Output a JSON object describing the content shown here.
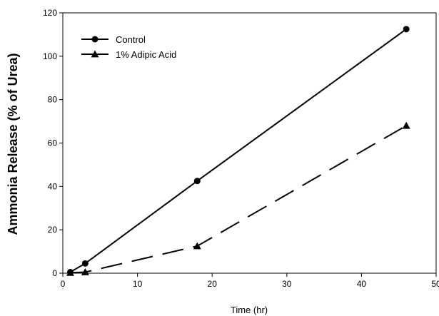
{
  "chart_data": {
    "type": "line",
    "title": "",
    "xlabel": "Time (hr)",
    "ylabel": "Ammonia Release (% of Urea)",
    "xlim": [
      0,
      50
    ],
    "ylim": [
      0,
      120
    ],
    "xticks": [
      0,
      10,
      20,
      30,
      40,
      50
    ],
    "yticks": [
      0,
      20,
      40,
      60,
      80,
      100,
      120
    ],
    "grid": false,
    "legend_position": "top-left",
    "series": [
      {
        "name": "Control",
        "marker": "circle",
        "line_style": "solid",
        "color": "#000000",
        "x": [
          1,
          3,
          18,
          46
        ],
        "y": [
          0.5,
          4.5,
          42.5,
          112.5
        ]
      },
      {
        "name": "1% Adipic Acid",
        "marker": "triangle",
        "line_style": "dashed",
        "color": "#000000",
        "x": [
          1,
          3,
          18,
          46
        ],
        "y": [
          0.2,
          0.5,
          12.5,
          68
        ]
      }
    ]
  }
}
